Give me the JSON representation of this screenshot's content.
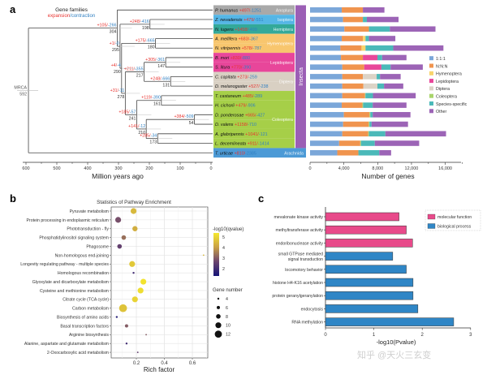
{
  "panel_labels": {
    "a": "a",
    "b": "b",
    "c": "c"
  },
  "panel_a": {
    "header_title": "Gene families",
    "header_expansion": "expansion",
    "header_sep": "/",
    "header_contraction": "contraction",
    "clade_label": "Insecta",
    "root_label": "MRCA",
    "xlabel": "Million years ago",
    "xticks": [
      600,
      500,
      400,
      300,
      200,
      100,
      0
    ],
    "colors": {
      "expansion": "#e8332f",
      "contraction": "#2f7fc1",
      "insecta": "#9b5fb5"
    },
    "order_colors": {
      "Anoplura": "#a9a9a9",
      "Isoptera": "#55b6e6",
      "Hemiptera": "#33a99a",
      "Hymenoptera": "#f8c66e",
      "Lepidoptera": "#e8469a",
      "Diptera": "#d9d0c3",
      "Coleoptera": "#a6cf48",
      "Arachnida": "#4c9ad6"
    },
    "species": [
      {
        "name": "P. humanus",
        "plus": "+497",
        "minus": "-1251",
        "order": "Anoplura"
      },
      {
        "name": "Z. nevadensis",
        "plus": "+479",
        "minus": "-551",
        "order": "Isoptera"
      },
      {
        "name": "N. lugens",
        "plus": "+1458",
        "minus": "-499",
        "order": "Hemiptera"
      },
      {
        "name": "A. mellifera",
        "plus": "+683",
        "minus": "-367",
        "order": "Hymenoptera"
      },
      {
        "name": "N. vitripennis",
        "plus": "+578",
        "minus": "-787",
        "order": "Hymenoptera"
      },
      {
        "name": "B. mori",
        "plus": "+830",
        "minus": "-880",
        "order": "Lepidoptera"
      },
      {
        "name": "S. litura",
        "plus": "+770",
        "minus": "-390",
        "order": "Lepidoptera"
      },
      {
        "name": "C. capitata",
        "plus": "+273",
        "minus": "-259",
        "order": "Diptera"
      },
      {
        "name": "D. melanogaster",
        "plus": "+527",
        "minus": "-238",
        "order": "Diptera"
      },
      {
        "name": "T. castaneum",
        "plus": "+485",
        "minus": "-289",
        "order": "Coleoptera"
      },
      {
        "name": "H. cichorii",
        "plus": "+479",
        "minus": "-906",
        "order": "Coleoptera"
      },
      {
        "name": "D. ponderosae",
        "plus": "+665",
        "minus": "-427",
        "order": "Coleoptera"
      },
      {
        "name": "D. valens",
        "plus": "+1158",
        "minus": "-710",
        "order": "Coleoptera"
      },
      {
        "name": "A. glabripennis",
        "plus": "+1041",
        "minus": "-121",
        "order": "Coleoptera"
      },
      {
        "name": "L. decemlineata",
        "plus": "+911",
        "minus": "-1414",
        "order": "Coleoptera"
      },
      {
        "name": "T. urticae",
        "plus": "+810",
        "minus": "-2385",
        "order": "Arachnida"
      }
    ],
    "tree": {
      "age": 592,
      "children": [
        {
          "age": 304,
          "plus": "+105",
          "minus": "-266",
          "children": [
            {
              "leaf": 0
            },
            {
              "age": 295,
              "plus": "+1",
              "minus": "-0",
              "children": [
                {
                  "age": 198,
                  "plus": "+248",
                  "minus": "-416",
                  "children": [
                    {
                      "leaf": 1
                    },
                    {
                      "leaf": 2
                    }
                  ]
                },
                {
                  "age": 290,
                  "plus": "+4",
                  "minus": "-4",
                  "children": [
                    {
                      "age": 180,
                      "plus": "+175",
                      "minus": "-665",
                      "children": [
                        {
                          "leaf": 3
                        },
                        {
                          "leaf": 4
                        }
                      ]
                    },
                    {
                      "age": 278,
                      "plus": "+31",
                      "minus": "-11",
                      "children": [
                        {
                          "age": 217,
                          "plus": "+211",
                          "minus": "-355",
                          "children": [
                            {
                              "age": 147,
                              "plus": "+305",
                              "minus": "-361",
                              "children": [
                                {
                                  "leaf": 5
                                },
                                {
                                  "leaf": 6
                                }
                              ]
                            },
                            {
                              "age": 131,
                              "plus": "+248",
                              "minus": "-666",
                              "children": [
                                {
                                  "leaf": 7
                                },
                                {
                                  "leaf": 8
                                }
                              ]
                            }
                          ]
                        },
                        {
                          "age": 241,
                          "plus": "+185",
                          "minus": "-57",
                          "children": [
                            {
                              "age": 161,
                              "plus": "+119",
                              "minus": "-390",
                              "children": [
                                {
                                  "leaf": 9
                                },
                                {
                                  "leaf": 10
                                }
                              ]
                            },
                            {
                              "age": 210,
                              "plus": "+141",
                              "minus": "-12",
                              "children": [
                                {
                                  "age": 54,
                                  "plus": "+384",
                                  "minus": "-509",
                                  "children": [
                                    {
                                      "leaf": 11
                                    },
                                    {
                                      "leaf": 12
                                    }
                                  ]
                                },
                                {
                                  "age": 173,
                                  "plus": "+285",
                                  "minus": "-34",
                                  "children": [
                                    {
                                      "leaf": 13
                                    },
                                    {
                                      "leaf": 14
                                    }
                                  ]
                                }
                              ]
                            }
                          ]
                        }
                      ]
                    }
                  ]
                }
              ]
            }
          ]
        },
        {
          "leaf": 15
        }
      ]
    }
  },
  "chart_data": [
    {
      "type": "bar",
      "orientation": "horizontal-stacked",
      "xlabel": "Number of genes",
      "xlim": [
        0,
        18000
      ],
      "xticks": [
        0,
        4000,
        8000,
        12000,
        16000
      ],
      "tick_labels": [
        "0",
        "4,000",
        "8,000",
        "12,000",
        "16,000"
      ],
      "legend_position": "right",
      "categories": [
        "P. humanus",
        "Z. nevadensis",
        "N. lugens",
        "A. mellifera",
        "N. vitripennis",
        "B. mori",
        "S. litura",
        "C. capitata",
        "D. melanogaster",
        "T. castaneum",
        "H. cichorii",
        "D. ponderosae",
        "D. valens",
        "A. glabripennis",
        "L. decemlineata",
        "T. urticae"
      ],
      "series": [
        {
          "name": "1:1:1",
          "color": "#7ba7d9",
          "values": [
            3750,
            3900,
            4060,
            3750,
            3590,
            3660,
            3810,
            3810,
            3810,
            3810,
            3750,
            4000,
            3910,
            3810,
            3440,
            3220
          ]
        },
        {
          "name": "N:N:N",
          "color": "#f0944e",
          "values": [
            2500,
            2350,
            2910,
            2500,
            2500,
            2590,
            2600,
            2440,
            2500,
            2690,
            2440,
            3030,
            3030,
            3070,
            2500,
            2500
          ]
        },
        {
          "name": "Hymenoptera",
          "color": "#f8d46c",
          "values": [
            0,
            0,
            0,
            310,
            470,
            0,
            0,
            0,
            0,
            0,
            0,
            0,
            0,
            0,
            0,
            0
          ]
        },
        {
          "name": "Lepidoptera",
          "color": "#e8479a",
          "values": [
            0,
            0,
            0,
            0,
            0,
            1720,
            2030,
            0,
            0,
            0,
            0,
            0,
            0,
            0,
            0,
            0
          ]
        },
        {
          "name": "Diptera",
          "color": "#dcd3c6",
          "values": [
            0,
            0,
            0,
            0,
            0,
            0,
            0,
            1630,
            1660,
            0,
            0,
            0,
            0,
            0,
            0,
            0
          ]
        },
        {
          "name": "Coleoptera",
          "color": "#a9d46b",
          "values": [
            0,
            0,
            0,
            0,
            0,
            0,
            0,
            0,
            0,
            60,
            90,
            100,
            90,
            90,
            90,
            0
          ]
        },
        {
          "name": "Species-specific",
          "color": "#4bb9b9",
          "values": [
            0,
            470,
            2470,
            410,
            3280,
            560,
            1090,
            400,
            780,
            880,
            1130,
            280,
            250,
            1940,
            1630,
            2470
          ]
        },
        {
          "name": "Other",
          "color": "#9c64b6",
          "values": [
            2550,
            3750,
            5400,
            3120,
            5940,
            2880,
            3810,
            2440,
            2280,
            5060,
            4000,
            4470,
            4310,
            7180,
            5250,
            1400
          ]
        }
      ]
    },
    {
      "type": "scatter",
      "title": "Statistics of Pathway Enrichment",
      "xlabel": "Rich factor",
      "xlim": [
        0.02,
        0.71
      ],
      "xticks": [
        0.2,
        0.4,
        0.6
      ],
      "grid": true,
      "color_legend_title": "-log10(qvalue)",
      "color_ticks": [
        5,
        4,
        3,
        2
      ],
      "color_range": [
        1.3,
        5.4
      ],
      "size_legend_title": "Gene number",
      "size_ticks": [
        4,
        6,
        8,
        10,
        12
      ],
      "categories": [
        "Pyruvate metabolism",
        "Protein processing in endoplasmic reticulum",
        "Phototransduction - fly",
        "Phosphatidylinositol signaling system",
        "Phagosome",
        "Non-homologous end-joining",
        "Longevity regulating pathway - multiple species",
        "Homologous recombination",
        "Glyoxylate and dicarboxylate metabolism",
        "Cysteine and methionine metabolism",
        "Citrate cycle (TCA cycle)",
        "Carbon metabolism",
        "Biosynthesis of amino acids",
        "Basal transcription factors",
        "Arginine biosynthesis",
        "Alanine, aspartate and glutamate metabolism",
        "2-Oxocarboxylic acid metabolism"
      ],
      "rich_factor": [
        0.18,
        0.07,
        0.19,
        0.11,
        0.08,
        0.68,
        0.17,
        0.18,
        0.25,
        0.23,
        0.19,
        0.105,
        0.06,
        0.13,
        0.27,
        0.13,
        0.21
      ],
      "neg_log10_qvalue": [
        4.5,
        2.8,
        4.3,
        3.3,
        2.5,
        4.5,
        4.8,
        2.0,
        5.3,
        5.2,
        5.0,
        4.7,
        1.5,
        3.0,
        3.0,
        2.0,
        2.5
      ],
      "gene_number": [
        10,
        10,
        9,
        8,
        8,
        2,
        10,
        4,
        10,
        10,
        10,
        13,
        4,
        6,
        3,
        4,
        3
      ]
    },
    {
      "type": "bar",
      "orientation": "horizontal",
      "xlabel": "-log10(Pvalue)",
      "xlim": [
        0,
        3
      ],
      "xticks": [
        0,
        1,
        2,
        3
      ],
      "legend_position": "top-right",
      "legend": [
        {
          "name": "molecular function",
          "color": "#e84a8a"
        },
        {
          "name": "biological process",
          "color": "#2f86c6"
        }
      ],
      "categories": [
        {
          "lines": [
            "mevalonate kinase activity"
          ],
          "group": "molecular function"
        },
        {
          "lines": [
            "methyltransferase activity"
          ],
          "group": "molecular function"
        },
        {
          "lines": [
            "endoribonuclease activity"
          ],
          "group": "molecular function"
        },
        {
          "lines": [
            "small GTPase mediated",
            "signal transduction"
          ],
          "group": "biological process"
        },
        {
          "lines": [
            "locomotory behavior"
          ],
          "group": "biological process"
        },
        {
          "lines": [
            "histone H4-K16 acetylation"
          ],
          "group": "biological process"
        },
        {
          "lines": [
            "protein geranylgeranylation"
          ],
          "group": "biological process"
        },
        {
          "lines": [
            "endocytosis"
          ],
          "group": "biological process"
        },
        {
          "lines": [
            "RNA methylation"
          ],
          "group": "biological process"
        }
      ],
      "values": [
        1.52,
        1.67,
        1.8,
        1.39,
        1.67,
        1.81,
        1.81,
        1.91,
        2.65
      ]
    }
  ],
  "watermark": "知乎 @天火三玄变"
}
